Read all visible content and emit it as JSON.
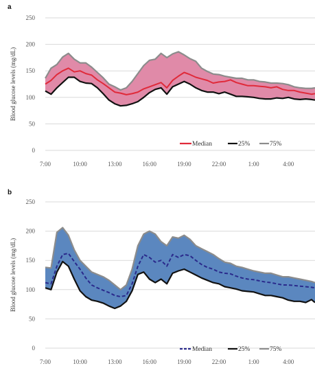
{
  "chart_data": [
    {
      "type": "area",
      "panel_label": "a",
      "ylabel": "Blood glucose levels (mg/dL)",
      "ylim": [
        0,
        250
      ],
      "yticks": [
        0,
        50,
        100,
        150,
        200,
        250
      ],
      "x_tick_labels": [
        "7:00",
        "10:00",
        "13:00",
        "16:00",
        "19:00",
        "22:00",
        "1:00",
        "4:00"
      ],
      "x_hours": [
        7,
        10,
        13,
        16,
        19,
        22,
        25,
        28
      ],
      "xlim": [
        7,
        30.3
      ],
      "grid": "horizontal",
      "legend_placement": "bottom-right",
      "band_fill": "#e08aa8",
      "series": [
        {
          "name": "Median",
          "style": "solid",
          "color": "#e02a3a",
          "x": [
            7,
            7.5,
            8,
            8.5,
            9,
            9.5,
            10,
            10.5,
            11,
            11.5,
            12,
            12.5,
            13,
            13.5,
            14,
            14.5,
            15,
            15.5,
            16,
            16.5,
            17,
            17.5,
            18,
            18.5,
            19,
            19.5,
            20,
            20.5,
            21,
            21.5,
            22,
            22.5,
            23,
            23.5,
            24,
            24.5,
            25,
            25.5,
            26,
            26.5,
            27,
            27.5,
            28,
            28.5,
            29,
            29.5,
            30,
            30.3
          ],
          "values": [
            125,
            132,
            143,
            150,
            155,
            148,
            150,
            145,
            142,
            133,
            126,
            118,
            110,
            108,
            105,
            107,
            110,
            116,
            120,
            124,
            128,
            118,
            132,
            140,
            147,
            143,
            138,
            135,
            132,
            127,
            129,
            130,
            133,
            128,
            125,
            122,
            122,
            121,
            120,
            118,
            120,
            115,
            113,
            113,
            110,
            108,
            106,
            107
          ]
        },
        {
          "name": "25%",
          "style": "solid",
          "color": "#111111",
          "x": [
            7,
            7.5,
            8,
            8.5,
            9,
            9.5,
            10,
            10.5,
            11,
            11.5,
            12,
            12.5,
            13,
            13.5,
            14,
            14.5,
            15,
            15.5,
            16,
            16.5,
            17,
            17.5,
            18,
            18.5,
            19,
            19.5,
            20,
            20.5,
            21,
            21.5,
            22,
            22.5,
            23,
            23.5,
            24,
            24.5,
            25,
            25.5,
            26,
            26.5,
            27,
            27.5,
            28,
            28.5,
            29,
            29.5,
            30,
            30.3
          ],
          "values": [
            112,
            106,
            118,
            128,
            138,
            138,
            130,
            127,
            126,
            118,
            107,
            95,
            88,
            84,
            85,
            88,
            92,
            100,
            109,
            115,
            118,
            106,
            120,
            125,
            130,
            125,
            118,
            113,
            110,
            110,
            107,
            110,
            106,
            102,
            102,
            101,
            100,
            98,
            97,
            97,
            99,
            98,
            100,
            97,
            96,
            97,
            96,
            95
          ]
        },
        {
          "name": "75%",
          "style": "solid",
          "color": "#8c8c8c",
          "x": [
            7,
            7.5,
            8,
            8.5,
            9,
            9.5,
            10,
            10.5,
            11,
            11.5,
            12,
            12.5,
            13,
            13.5,
            14,
            14.5,
            15,
            15.5,
            16,
            16.5,
            17,
            17.5,
            18,
            18.5,
            19,
            19.5,
            20,
            20.5,
            21,
            21.5,
            22,
            22.5,
            23,
            23.5,
            24,
            24.5,
            25,
            25.5,
            26,
            26.5,
            27,
            27.5,
            28,
            28.5,
            29,
            29.5,
            30,
            30.3
          ],
          "values": [
            136,
            155,
            162,
            176,
            183,
            172,
            165,
            165,
            157,
            147,
            137,
            125,
            120,
            114,
            118,
            130,
            145,
            160,
            170,
            172,
            183,
            175,
            182,
            186,
            180,
            173,
            168,
            155,
            149,
            144,
            143,
            140,
            138,
            136,
            136,
            133,
            133,
            130,
            129,
            127,
            127,
            126,
            124,
            120,
            118,
            117,
            117,
            118
          ]
        }
      ]
    },
    {
      "type": "area",
      "panel_label": "b",
      "ylabel": "Blood glucose levels (mg/dL)",
      "ylim": [
        0,
        250
      ],
      "yticks": [
        0,
        50,
        100,
        150,
        200,
        250
      ],
      "x_tick_labels": [
        "7:00",
        "10:00",
        "13:00",
        "16:00",
        "19:00",
        "22:00",
        "1:00",
        "4:00"
      ],
      "x_hours": [
        7,
        10,
        13,
        16,
        19,
        22,
        25,
        28
      ],
      "xlim": [
        7,
        30.3
      ],
      "grid": "horizontal",
      "legend_placement": "bottom-right",
      "band_fill": "#5b87bf",
      "series": [
        {
          "name": "Median",
          "style": "dashed",
          "color": "#2a2a8c",
          "x": [
            7,
            7.5,
            8,
            8.5,
            9,
            9.5,
            10,
            10.5,
            11,
            11.5,
            12,
            12.5,
            13,
            13.5,
            14,
            14.5,
            15,
            15.5,
            16,
            16.5,
            17,
            17.5,
            18,
            18.5,
            19,
            19.5,
            20,
            20.5,
            21,
            21.5,
            22,
            22.5,
            23,
            23.5,
            24,
            24.5,
            25,
            25.5,
            26,
            26.5,
            27,
            27.5,
            28,
            28.5,
            29,
            29.5,
            30,
            30.3
          ],
          "values": [
            112,
            110,
            140,
            160,
            162,
            148,
            135,
            120,
            108,
            103,
            99,
            95,
            90,
            88,
            90,
            110,
            140,
            160,
            155,
            147,
            150,
            140,
            160,
            155,
            160,
            158,
            150,
            143,
            138,
            135,
            130,
            128,
            127,
            123,
            120,
            118,
            117,
            115,
            113,
            112,
            110,
            108,
            108,
            107,
            106,
            105,
            104,
            103
          ]
        },
        {
          "name": "25%",
          "style": "solid",
          "color": "#111111",
          "x": [
            7,
            7.5,
            8,
            8.5,
            9,
            9.5,
            10,
            10.5,
            11,
            11.5,
            12,
            12.5,
            13,
            13.5,
            14,
            14.5,
            15,
            15.5,
            16,
            16.5,
            17,
            17.5,
            18,
            18.5,
            19,
            19.5,
            20,
            20.5,
            21,
            21.5,
            22,
            22.5,
            23,
            23.5,
            24,
            24.5,
            25,
            25.5,
            26,
            26.5,
            27,
            27.5,
            28,
            28.5,
            29,
            29.5,
            30,
            30.3
          ],
          "values": [
            103,
            100,
            130,
            148,
            140,
            118,
            98,
            88,
            82,
            80,
            77,
            72,
            68,
            72,
            80,
            98,
            126,
            130,
            118,
            112,
            118,
            110,
            128,
            132,
            135,
            130,
            125,
            120,
            116,
            112,
            110,
            105,
            103,
            101,
            98,
            97,
            96,
            93,
            90,
            90,
            88,
            86,
            82,
            80,
            80,
            78,
            83,
            78
          ]
        },
        {
          "name": "75%",
          "style": "solid",
          "color": "#8c8c8c",
          "x": [
            7,
            7.5,
            8,
            8.5,
            9,
            9.5,
            10,
            10.5,
            11,
            11.5,
            12,
            12.5,
            13,
            13.5,
            14,
            14.5,
            15,
            15.5,
            16,
            16.5,
            17,
            17.5,
            18,
            18.5,
            19,
            19.5,
            20,
            20.5,
            21,
            21.5,
            22,
            22.5,
            23,
            23.5,
            24,
            24.5,
            25,
            25.5,
            26,
            26.5,
            27,
            27.5,
            28,
            28.5,
            29,
            29.5,
            30,
            30.3
          ],
          "values": [
            138,
            137,
            198,
            206,
            193,
            168,
            150,
            140,
            130,
            126,
            122,
            116,
            108,
            100,
            108,
            135,
            175,
            195,
            200,
            195,
            182,
            175,
            190,
            188,
            193,
            186,
            175,
            170,
            165,
            160,
            153,
            147,
            145,
            140,
            138,
            135,
            132,
            130,
            128,
            128,
            125,
            122,
            122,
            120,
            118,
            116,
            114,
            112
          ]
        }
      ]
    }
  ]
}
